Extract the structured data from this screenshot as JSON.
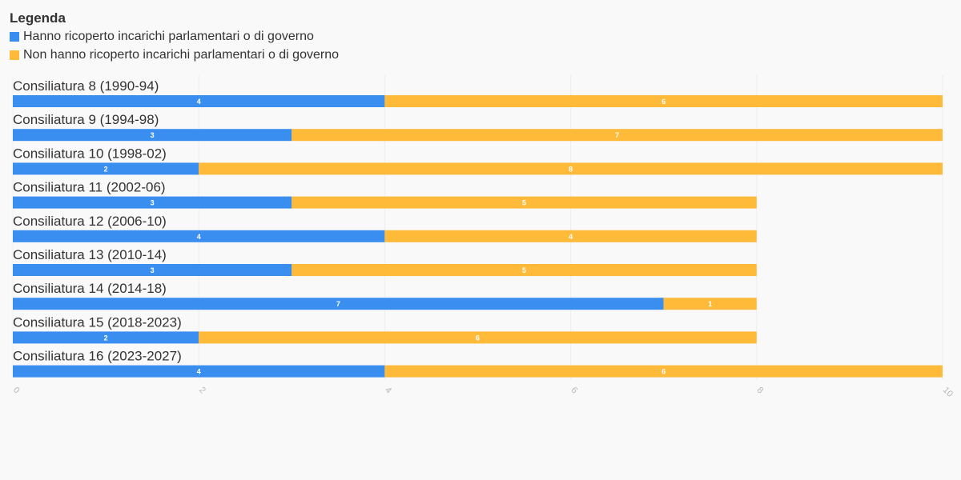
{
  "legend": {
    "title": "Legenda",
    "items": [
      {
        "label": "Hanno ricoperto incarichi parlamentari o di governo",
        "color": "#3a8ef0"
      },
      {
        "label": "Non hanno ricoperto incarichi parlamentari o di governo",
        "color": "#ffba3a"
      }
    ]
  },
  "chart_data": {
    "type": "bar",
    "orientation": "horizontal",
    "stacked": true,
    "categories": [
      "Consiliatura 8 (1990-94)",
      "Consiliatura 9 (1994-98)",
      "Consiliatura 10 (1998-02)",
      "Consiliatura 11 (2002-06)",
      "Consiliatura 12 (2006-10)",
      "Consiliatura 13 (2010-14)",
      "Consiliatura 14 (2014-18)",
      "Consiliatura 15 (2018-2023)",
      "Consiliatura 16 (2023-2027)"
    ],
    "series": [
      {
        "name": "Hanno ricoperto incarichi parlamentari o di governo",
        "color": "#3a8ef0",
        "values": [
          4,
          3,
          2,
          3,
          4,
          3,
          7,
          2,
          4
        ]
      },
      {
        "name": "Non hanno ricoperto incarichi parlamentari o di governo",
        "color": "#ffba3a",
        "values": [
          6,
          7,
          8,
          5,
          4,
          5,
          1,
          6,
          6
        ]
      }
    ],
    "xlim": [
      0,
      10
    ],
    "xticks": [
      0,
      2,
      4,
      6,
      8,
      10
    ],
    "grid": true,
    "legend_position": "top-left"
  }
}
